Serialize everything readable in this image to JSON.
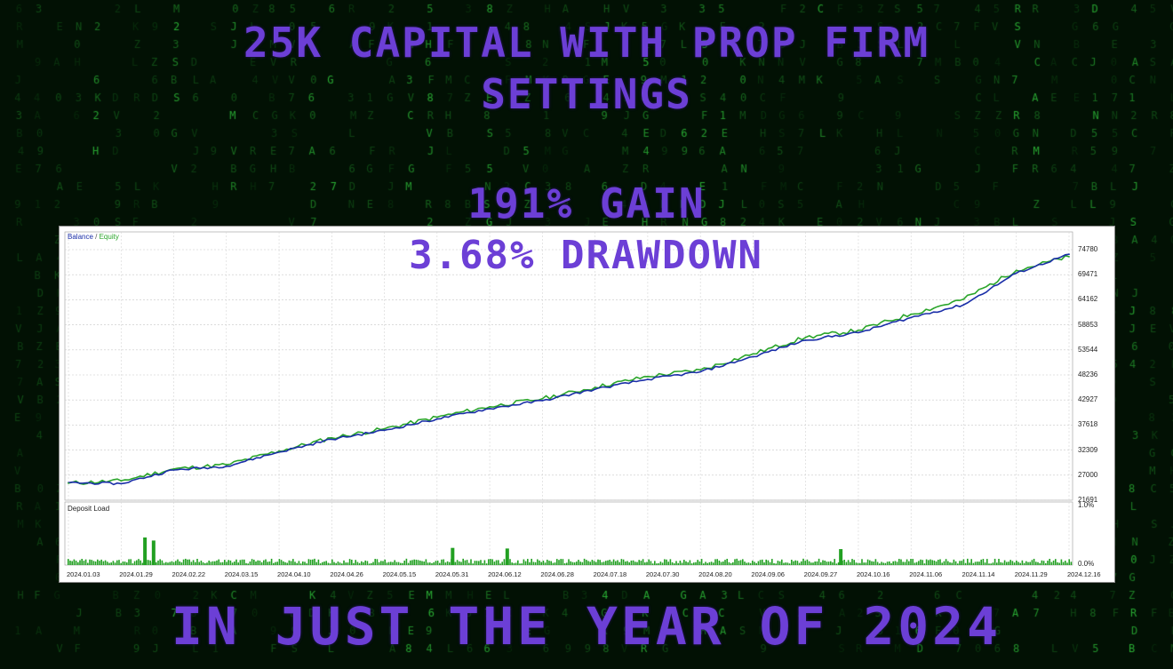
{
  "headlines": {
    "line1": "25K CAPITAL WITH PROP FIRM",
    "line2": "SETTINGS",
    "gain": "191% GAIN",
    "drawdown": "3.68% DRAWDOWN",
    "footer": "IN JUST THE YEAR OF 2024"
  },
  "colors": {
    "headline": "#6c3fd6",
    "background": "#021104",
    "matrix_glyph": "#2fbf3a",
    "balance_line": "#1a2ea8",
    "equity_line": "#2aa52a",
    "deposit_bar": "#22a022"
  },
  "chart_data": [
    {
      "type": "line",
      "legend": {
        "balance": "Balance",
        "separator": " / ",
        "equity": "Equity"
      },
      "x": [
        "2024.01.03",
        "2024.01.29",
        "2024.02.22",
        "2024.03.15",
        "2024.04.10",
        "2024.04.26",
        "2024.05.15",
        "2024.05.31",
        "2024.06.12",
        "2024.06.28",
        "2024.07.18",
        "2024.07.30",
        "2024.08.20",
        "2024.09.06",
        "2024.09.27",
        "2024.10.16",
        "2024.11.06",
        "2024.11.14",
        "2024.11.29",
        "2024.12.16"
      ],
      "y_ticks": [
        "74780",
        "69471",
        "64162",
        "58853",
        "53544",
        "48236",
        "42927",
        "37618",
        "32309",
        "27000",
        "21691"
      ],
      "ylim": [
        21691,
        74780
      ],
      "series": [
        {
          "name": "Balance",
          "values": [
            25400,
            25200,
            28100,
            28900,
            31900,
            34600,
            36500,
            38900,
            41100,
            42800,
            45200,
            47300,
            48900,
            52100,
            55600,
            57200,
            60400,
            63100,
            69800,
            73800
          ]
        },
        {
          "name": "Equity",
          "values": [
            25300,
            25800,
            28300,
            29200,
            32100,
            34900,
            36800,
            39300,
            41500,
            43200,
            45600,
            47900,
            49300,
            52700,
            56200,
            57700,
            61100,
            64300,
            70400,
            73300
          ]
        }
      ]
    },
    {
      "type": "bar",
      "title": "Deposit Load",
      "y_ticks": [
        "1.0%",
        "0.0%"
      ],
      "ylim": [
        0,
        1.0
      ],
      "spikes": [
        {
          "date": "2024.01.29",
          "value": 0.45
        },
        {
          "date": "2024.02.01",
          "value": 0.4
        },
        {
          "date": "2024.05.15",
          "value": 0.28
        },
        {
          "date": "2024.06.03",
          "value": 0.27
        },
        {
          "date": "2024.09.27",
          "value": 0.26
        }
      ],
      "baseline_value": 0.08
    }
  ]
}
